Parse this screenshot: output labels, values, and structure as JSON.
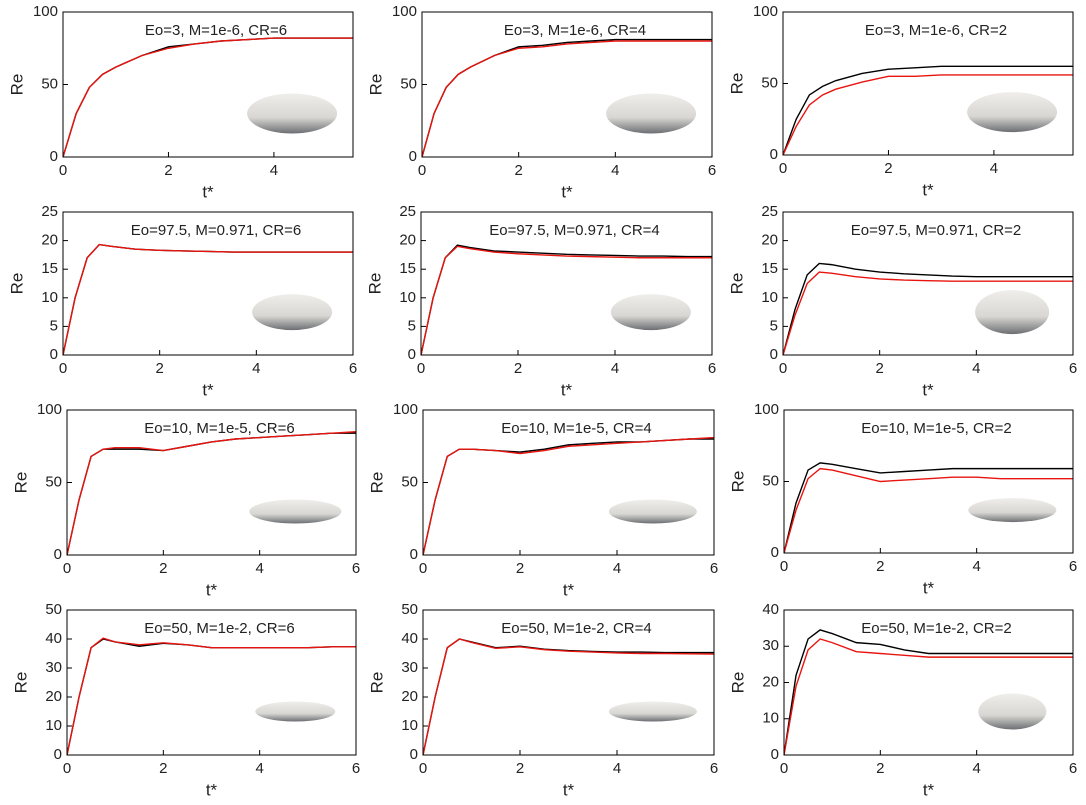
{
  "chart_data": [
    {
      "type": "line",
      "title": "Eo=3, M=1e-6, CR=6",
      "x_label": "t*",
      "y_label": "Re",
      "x": [
        0,
        0.25,
        0.5,
        0.75,
        1,
        1.5,
        2,
        2.5,
        3,
        3.5,
        4,
        4.5,
        5,
        5.5
      ],
      "series": [
        {
          "color": "#000000",
          "values": [
            0,
            30,
            48,
            57,
            62,
            70,
            76,
            78,
            80,
            81,
            82,
            82,
            82,
            82
          ]
        },
        {
          "color": "#e8140f",
          "values": [
            0,
            30,
            48,
            57,
            62,
            70,
            75,
            78,
            80,
            81,
            82,
            82,
            82,
            82
          ]
        }
      ],
      "xlim": [
        0,
        5.5
      ],
      "ylim": [
        0,
        100
      ],
      "xticks": [
        0,
        2,
        4
      ],
      "yticks": [
        0,
        50,
        100
      ]
    },
    {
      "type": "line",
      "title": "Eo=3, M=1e-6, CR=4",
      "x_label": "t*",
      "y_label": "Re",
      "x": [
        0,
        0.25,
        0.5,
        0.75,
        1,
        1.5,
        2,
        2.5,
        3,
        3.5,
        4,
        4.5,
        5,
        5.5,
        6
      ],
      "series": [
        {
          "color": "#000000",
          "values": [
            0,
            30,
            48,
            57,
            62,
            70,
            76,
            77,
            79,
            80,
            81,
            81,
            81,
            81,
            81
          ]
        },
        {
          "color": "#e8140f",
          "values": [
            0,
            30,
            48,
            57,
            62,
            70,
            75,
            76,
            78,
            79,
            80,
            80,
            80,
            80,
            80
          ]
        }
      ],
      "xlim": [
        0,
        6
      ],
      "ylim": [
        0,
        100
      ],
      "xticks": [
        0,
        2,
        4,
        6
      ],
      "yticks": [
        0,
        50,
        100
      ]
    },
    {
      "type": "line",
      "title": "Eo=3, M=1e-6, CR=2",
      "x_label": "t*",
      "y_label": "Re",
      "x": [
        0,
        0.25,
        0.5,
        0.75,
        1,
        1.5,
        2,
        2.5,
        3,
        3.5,
        4,
        4.5,
        5,
        5.5
      ],
      "series": [
        {
          "color": "#000000",
          "values": [
            0,
            25,
            42,
            48,
            52,
            57,
            60,
            61,
            62,
            62,
            62,
            62,
            62,
            62
          ]
        },
        {
          "color": "#e8140f",
          "values": [
            0,
            20,
            35,
            42,
            46,
            51,
            55,
            55,
            56,
            56,
            56,
            56,
            56,
            56
          ]
        }
      ],
      "xlim": [
        0,
        5.5
      ],
      "ylim": [
        0,
        100
      ],
      "xticks": [
        0,
        2,
        4
      ],
      "yticks": [
        0,
        50,
        100
      ]
    },
    {
      "type": "line",
      "title": "Eo=97.5, M=0.971, CR=6",
      "x_label": "t*",
      "y_label": "Re",
      "x": [
        0,
        0.25,
        0.5,
        0.75,
        1,
        1.5,
        2,
        2.5,
        3,
        3.5,
        4,
        4.5,
        5,
        5.5,
        6
      ],
      "series": [
        {
          "color": "#000000",
          "values": [
            0,
            10,
            17,
            19.3,
            19,
            18.5,
            18.3,
            18.2,
            18.1,
            18,
            18,
            18,
            18,
            18,
            18
          ]
        },
        {
          "color": "#e8140f",
          "values": [
            0,
            10,
            17,
            19.3,
            19,
            18.5,
            18.3,
            18.2,
            18.1,
            18,
            18,
            18,
            18,
            18,
            18
          ]
        }
      ],
      "xlim": [
        0,
        6
      ],
      "ylim": [
        0,
        25
      ],
      "xticks": [
        0,
        2,
        4,
        6
      ],
      "yticks": [
        0,
        5,
        10,
        15,
        20,
        25
      ]
    },
    {
      "type": "line",
      "title": "Eo=97.5, M=0.971, CR=4",
      "x_label": "t*",
      "y_label": "Re",
      "x": [
        0,
        0.25,
        0.5,
        0.75,
        1,
        1.5,
        2,
        2.5,
        3,
        3.5,
        4,
        4.5,
        5,
        5.5,
        6
      ],
      "series": [
        {
          "color": "#000000",
          "values": [
            0,
            10,
            17,
            19.2,
            18.8,
            18.2,
            18,
            17.8,
            17.6,
            17.5,
            17.4,
            17.3,
            17.3,
            17.2,
            17.2
          ]
        },
        {
          "color": "#e8140f",
          "values": [
            0,
            10,
            17,
            19,
            18.6,
            18,
            17.7,
            17.5,
            17.3,
            17.2,
            17.1,
            17,
            17,
            17,
            17
          ]
        }
      ],
      "xlim": [
        0,
        6
      ],
      "ylim": [
        0,
        25
      ],
      "xticks": [
        0,
        2,
        4,
        6
      ],
      "yticks": [
        0,
        5,
        10,
        15,
        20,
        25
      ]
    },
    {
      "type": "line",
      "title": "Eo=97.5, M=0.971, CR=2",
      "x_label": "t*",
      "y_label": "Re",
      "x": [
        0,
        0.25,
        0.5,
        0.75,
        1,
        1.5,
        2,
        2.5,
        3,
        3.5,
        4,
        4.5,
        5,
        5.5,
        6
      ],
      "series": [
        {
          "color": "#000000",
          "values": [
            0,
            8,
            14,
            16,
            15.8,
            15,
            14.5,
            14.2,
            14,
            13.8,
            13.7,
            13.7,
            13.7,
            13.7,
            13.7
          ]
        },
        {
          "color": "#e8140f",
          "values": [
            0,
            7,
            12.5,
            14.5,
            14.3,
            13.7,
            13.3,
            13.1,
            13,
            12.9,
            12.9,
            12.9,
            12.9,
            12.9,
            12.9
          ]
        }
      ],
      "xlim": [
        0,
        6
      ],
      "ylim": [
        0,
        25
      ],
      "xticks": [
        0,
        2,
        4,
        6
      ],
      "yticks": [
        0,
        5,
        10,
        15,
        20,
        25
      ]
    },
    {
      "type": "line",
      "title": "Eo=10, M=1e-5, CR=6",
      "x_label": "t*",
      "y_label": "Re",
      "x": [
        0,
        0.25,
        0.5,
        0.75,
        1,
        1.5,
        2,
        2.5,
        3,
        3.5,
        4,
        4.5,
        5,
        5.5,
        6
      ],
      "series": [
        {
          "color": "#000000",
          "values": [
            0,
            38,
            68,
            73,
            73,
            73,
            72,
            75,
            78,
            80,
            81,
            82,
            83,
            84,
            84
          ]
        },
        {
          "color": "#e8140f",
          "values": [
            0,
            38,
            68,
            73,
            74,
            74,
            72,
            75,
            78,
            80,
            81,
            82,
            83,
            84,
            85
          ]
        }
      ],
      "xlim": [
        0,
        6
      ],
      "ylim": [
        0,
        100
      ],
      "xticks": [
        0,
        2,
        4,
        6
      ],
      "yticks": [
        0,
        50,
        100
      ]
    },
    {
      "type": "line",
      "title": "Eo=10, M=1e-5, CR=4",
      "x_label": "t*",
      "y_label": "Re",
      "x": [
        0,
        0.25,
        0.5,
        0.75,
        1,
        1.5,
        2,
        2.5,
        3,
        3.5,
        4,
        4.5,
        5,
        5.5,
        6
      ],
      "series": [
        {
          "color": "#000000",
          "values": [
            0,
            38,
            68,
            73,
            73,
            72,
            71,
            73,
            76,
            77,
            78,
            78,
            79,
            80,
            80
          ]
        },
        {
          "color": "#e8140f",
          "values": [
            0,
            38,
            68,
            73,
            73,
            72,
            70,
            72,
            75,
            76,
            77,
            78,
            79,
            80,
            81
          ]
        }
      ],
      "xlim": [
        0,
        6
      ],
      "ylim": [
        0,
        100
      ],
      "xticks": [
        0,
        2,
        4,
        6
      ],
      "yticks": [
        0,
        50,
        100
      ]
    },
    {
      "type": "line",
      "title": "Eo=10, M=1e-5, CR=2",
      "x_label": "t*",
      "y_label": "Re",
      "x": [
        0,
        0.25,
        0.5,
        0.75,
        1,
        1.5,
        2,
        2.5,
        3,
        3.5,
        4,
        4.5,
        5,
        5.5,
        6
      ],
      "series": [
        {
          "color": "#000000",
          "values": [
            0,
            35,
            58,
            63,
            62,
            59,
            56,
            57,
            58,
            59,
            59,
            59,
            59,
            59,
            59
          ]
        },
        {
          "color": "#e8140f",
          "values": [
            0,
            30,
            52,
            59,
            58,
            54,
            50,
            51,
            52,
            53,
            53,
            52,
            52,
            52,
            52
          ]
        }
      ],
      "xlim": [
        0,
        6
      ],
      "ylim": [
        0,
        100
      ],
      "xticks": [
        0,
        2,
        4,
        6
      ],
      "yticks": [
        0,
        50,
        100
      ]
    },
    {
      "type": "line",
      "title": "Eo=50, M=1e-2, CR=6",
      "x_label": "t*",
      "y_label": "Re",
      "x": [
        0,
        0.25,
        0.5,
        0.75,
        1,
        1.5,
        2,
        2.5,
        3,
        3.5,
        4,
        4.5,
        5,
        5.5,
        6
      ],
      "series": [
        {
          "color": "#000000",
          "values": [
            0,
            20,
            37,
            40,
            39,
            37.5,
            38.5,
            38,
            37,
            37,
            37,
            37,
            37,
            37.3,
            37.3
          ]
        },
        {
          "color": "#e8140f",
          "values": [
            0,
            20,
            37,
            40.3,
            39,
            38,
            38.7,
            38,
            37,
            37,
            37,
            37,
            37,
            37.3,
            37.3
          ]
        }
      ],
      "xlim": [
        0,
        6
      ],
      "ylim": [
        0,
        50
      ],
      "xticks": [
        0,
        2,
        4,
        6
      ],
      "yticks": [
        0,
        10,
        20,
        30,
        40,
        50
      ]
    },
    {
      "type": "line",
      "title": "Eo=50, M=1e-2, CR=4",
      "x_label": "t*",
      "y_label": "Re",
      "x": [
        0,
        0.25,
        0.5,
        0.75,
        1,
        1.5,
        2,
        2.5,
        3,
        3.5,
        4,
        4.5,
        5,
        5.5,
        6
      ],
      "series": [
        {
          "color": "#000000",
          "values": [
            0,
            20,
            37,
            40,
            39,
            37,
            37.5,
            36.5,
            36,
            35.7,
            35.5,
            35.5,
            35.3,
            35.3,
            35.3
          ]
        },
        {
          "color": "#e8140f",
          "values": [
            0,
            20,
            37,
            40,
            38.8,
            36.8,
            37.3,
            36.3,
            35.8,
            35.5,
            35.2,
            35,
            35,
            34.9,
            34.8
          ]
        }
      ],
      "xlim": [
        0,
        6
      ],
      "ylim": [
        0,
        50
      ],
      "xticks": [
        0,
        2,
        4,
        6
      ],
      "yticks": [
        0,
        10,
        20,
        30,
        40,
        50
      ]
    },
    {
      "type": "line",
      "title": "Eo=50, M=1e-2, CR=2",
      "x_label": "t*",
      "y_label": "Re",
      "x": [
        0,
        0.25,
        0.5,
        0.75,
        1,
        1.5,
        2,
        2.5,
        3,
        3.5,
        4,
        4.5,
        5,
        5.5,
        6
      ],
      "series": [
        {
          "color": "#000000",
          "values": [
            0,
            22,
            32,
            34.5,
            33.5,
            31,
            30.5,
            29,
            28,
            28,
            28,
            28,
            28,
            28,
            28
          ]
        },
        {
          "color": "#e8140f",
          "values": [
            0,
            19,
            29,
            32,
            31,
            28.5,
            28,
            27.5,
            27,
            27,
            27,
            27,
            27,
            27,
            27
          ]
        }
      ],
      "xlim": [
        0,
        6
      ],
      "ylim": [
        0,
        40
      ],
      "xticks": [
        0,
        2,
        4,
        6
      ],
      "yticks": [
        0,
        10,
        20,
        30,
        40
      ]
    }
  ]
}
